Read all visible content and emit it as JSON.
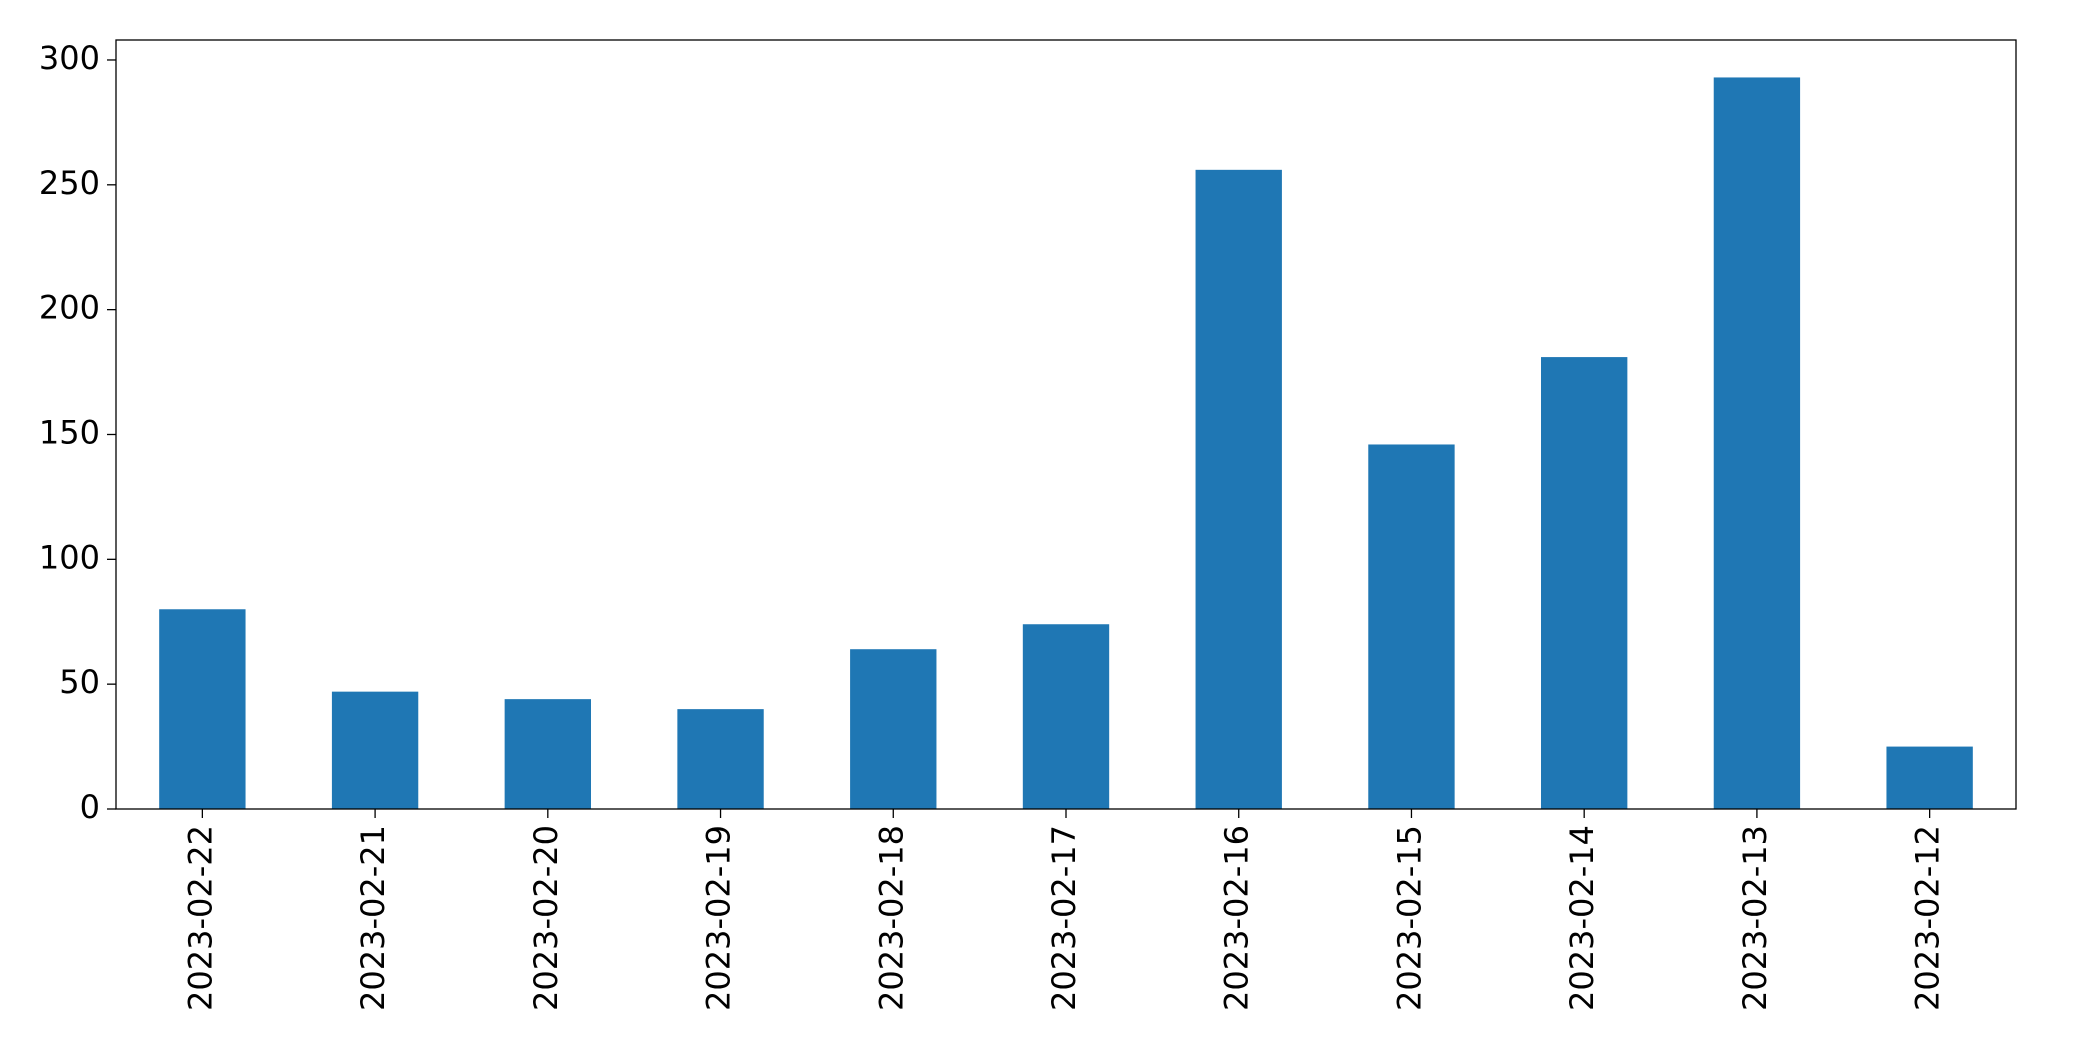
{
  "chart_data": {
    "type": "bar",
    "categories": [
      "2023-02-22",
      "2023-02-21",
      "2023-02-20",
      "2023-02-19",
      "2023-02-18",
      "2023-02-17",
      "2023-02-16",
      "2023-02-15",
      "2023-02-14",
      "2023-02-13",
      "2023-02-12"
    ],
    "values": [
      80,
      47,
      44,
      40,
      64,
      74,
      256,
      146,
      181,
      293,
      25
    ],
    "color": "#1f77b4",
    "ylim": [
      0,
      308
    ],
    "yticks": [
      0,
      50,
      100,
      150,
      200,
      250,
      300
    ],
    "grid": false
  }
}
